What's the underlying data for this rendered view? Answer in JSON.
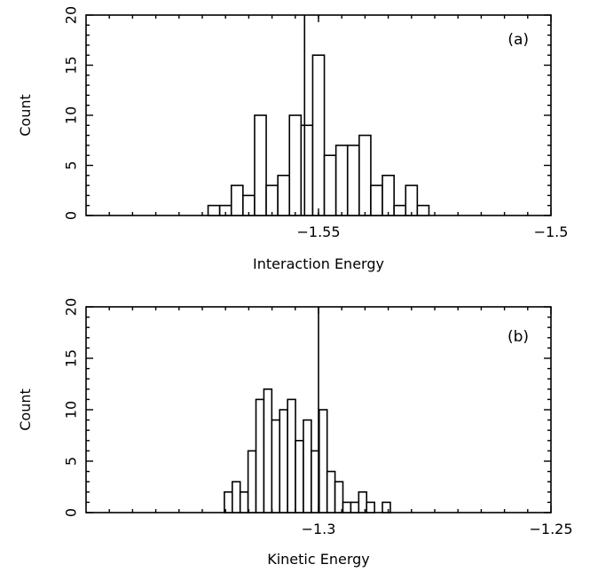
{
  "chart_data": [
    {
      "type": "bar",
      "panel_label": "(a)",
      "xlabel": "Interaction Energy",
      "ylabel": "Count",
      "xlim": [
        -1.6,
        -1.5
      ],
      "ylim": [
        0,
        20
      ],
      "xticks": [
        -1.55,
        -1.5
      ],
      "xtick_labels": [
        "−1.55",
        "−1.5"
      ],
      "yticks": [
        0,
        5,
        10,
        15,
        20
      ],
      "ytick_labels": [
        "0",
        "5",
        "10",
        "15",
        "20"
      ],
      "vertical_line_x": -1.553,
      "bin_width": 0.0025,
      "bins": [
        {
          "x": -1.5725,
          "count": 1
        },
        {
          "x": -1.57,
          "count": 1
        },
        {
          "x": -1.5675,
          "count": 3
        },
        {
          "x": -1.565,
          "count": 2
        },
        {
          "x": -1.5625,
          "count": 10
        },
        {
          "x": -1.56,
          "count": 3
        },
        {
          "x": -1.5575,
          "count": 4
        },
        {
          "x": -1.555,
          "count": 10
        },
        {
          "x": -1.5525,
          "count": 9
        },
        {
          "x": -1.55,
          "count": 16
        },
        {
          "x": -1.5475,
          "count": 6
        },
        {
          "x": -1.545,
          "count": 7
        },
        {
          "x": -1.5425,
          "count": 7
        },
        {
          "x": -1.54,
          "count": 8
        },
        {
          "x": -1.5375,
          "count": 3
        },
        {
          "x": -1.535,
          "count": 4
        },
        {
          "x": -1.5325,
          "count": 1
        },
        {
          "x": -1.53,
          "count": 3
        },
        {
          "x": -1.5275,
          "count": 1
        }
      ]
    },
    {
      "type": "bar",
      "panel_label": "(b)",
      "xlabel": "Kinetic Energy",
      "ylabel": "Count",
      "xlim": [
        -1.35,
        -1.25
      ],
      "ylim": [
        0,
        20
      ],
      "xticks": [
        -1.3,
        -1.25
      ],
      "xtick_labels": [
        "−1.3",
        "−1.25"
      ],
      "yticks": [
        0,
        5,
        10,
        15,
        20
      ],
      "ytick_labels": [
        "0",
        "5",
        "10",
        "15",
        "20"
      ],
      "vertical_line_x": -1.3,
      "bin_width": 0.0017,
      "bins": [
        {
          "x": -1.3194,
          "count": 2
        },
        {
          "x": -1.3177,
          "count": 3
        },
        {
          "x": -1.316,
          "count": 2
        },
        {
          "x": -1.3143,
          "count": 6
        },
        {
          "x": -1.3126,
          "count": 11
        },
        {
          "x": -1.3109,
          "count": 12
        },
        {
          "x": -1.3092,
          "count": 9
        },
        {
          "x": -1.3075,
          "count": 10
        },
        {
          "x": -1.3058,
          "count": 11
        },
        {
          "x": -1.3041,
          "count": 7
        },
        {
          "x": -1.3024,
          "count": 9
        },
        {
          "x": -1.3007,
          "count": 6
        },
        {
          "x": -1.299,
          "count": 10
        },
        {
          "x": -1.2973,
          "count": 4
        },
        {
          "x": -1.2956,
          "count": 3
        },
        {
          "x": -1.2939,
          "count": 1
        },
        {
          "x": -1.2922,
          "count": 1
        },
        {
          "x": -1.2905,
          "count": 2
        },
        {
          "x": -1.2888,
          "count": 1
        },
        {
          "x": -1.2854,
          "count": 1
        }
      ]
    }
  ]
}
